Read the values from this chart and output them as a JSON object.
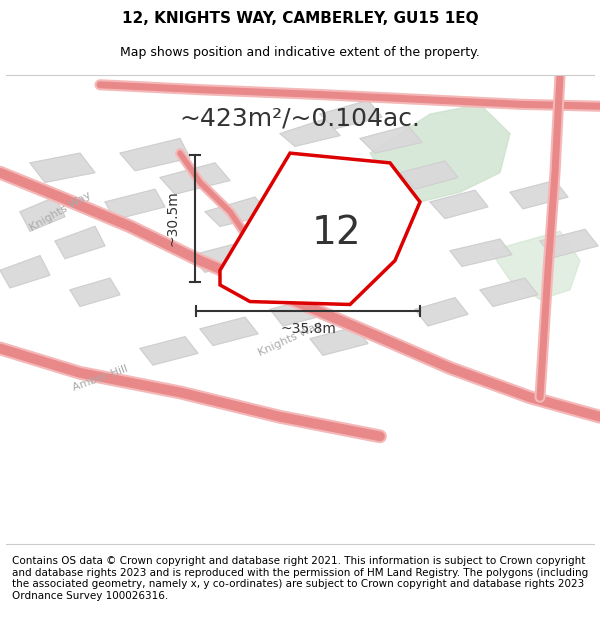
{
  "title_line1": "12, KNIGHTS WAY, CAMBERLEY, GU15 1EQ",
  "title_line2": "Map shows position and indicative extent of the property.",
  "area_label": "~423m²/~0.104ac.",
  "property_number": "12",
  "dim_width": "~35.8m",
  "dim_height": "~30.5m",
  "footer_text": "Contains OS data © Crown copyright and database right 2021. This information is subject to Crown copyright and database rights 2023 and is reproduced with the permission of HM Land Registry. The polygons (including the associated geometry, namely x, y co-ordinates) are subject to Crown copyright and database rights 2023 Ordnance Survey 100026316.",
  "bg_color": "#f8f8f8",
  "map_bg": "#f0f0f0",
  "road_color": "#f4b8b8",
  "road_edge_color": "#e88888",
  "property_outline_color": "#dd0000",
  "property_fill_color": "#f5f5f5",
  "green_area_color": "#c8dfc8",
  "block_color": "#e0e0e0",
  "dim_line_color": "#333333",
  "street_label_color": "#aaaaaa",
  "title_fontsize": 11,
  "subtitle_fontsize": 9,
  "area_fontsize": 18,
  "number_fontsize": 28,
  "dim_fontsize": 10,
  "footer_fontsize": 7.5
}
